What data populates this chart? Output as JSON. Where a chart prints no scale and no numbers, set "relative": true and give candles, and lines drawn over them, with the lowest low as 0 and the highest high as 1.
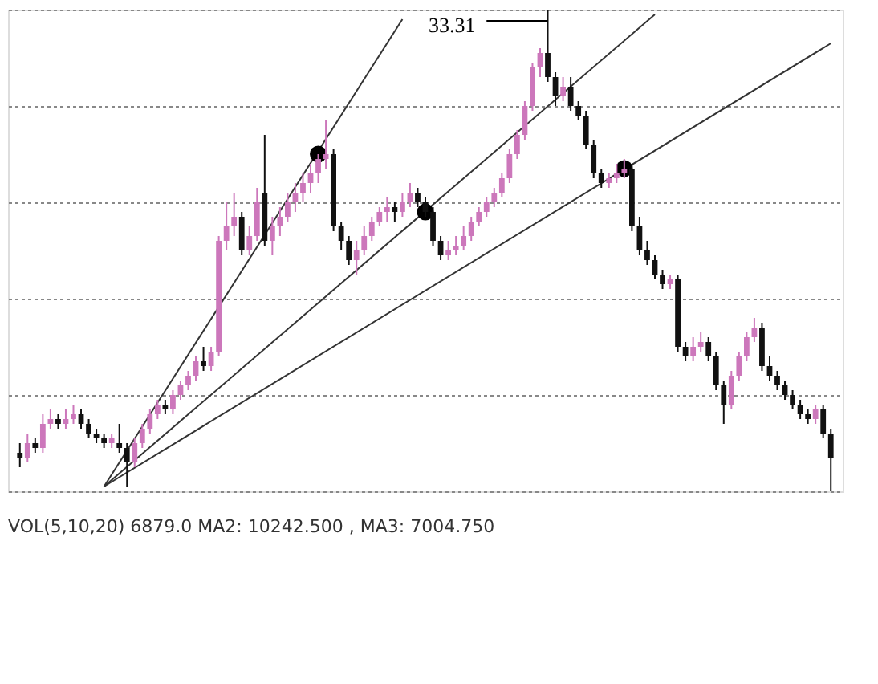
{
  "chart_data": {
    "type": "candlestick",
    "relative": true,
    "tick_labels": false,
    "grid": "y",
    "categories": [
      null,
      null,
      null,
      null,
      null,
      null,
      null,
      null,
      null,
      null,
      null,
      null,
      null,
      null,
      null,
      null,
      null,
      null,
      null,
      null,
      null,
      null,
      null,
      null,
      null,
      null,
      null,
      null,
      null,
      null,
      null,
      null,
      null,
      null,
      null,
      null,
      null,
      null,
      null,
      null,
      null,
      null,
      null,
      null,
      null,
      null,
      null,
      null,
      null,
      null,
      null,
      null,
      null,
      null,
      null,
      null,
      null,
      null,
      null,
      null,
      null,
      null,
      null,
      null,
      null,
      null,
      null,
      null,
      null,
      null,
      null,
      null,
      null,
      null,
      null,
      null,
      null,
      null,
      null,
      null,
      null,
      null,
      null,
      null,
      null,
      null,
      null,
      null,
      null,
      null,
      null,
      null,
      null,
      null,
      null,
      null,
      null,
      null,
      null,
      null,
      null,
      null,
      null,
      null,
      null,
      null,
      null
    ],
    "ohlc": [
      [
        0.08,
        0.1,
        0.05,
        0.07
      ],
      [
        0.07,
        0.12,
        0.06,
        0.1
      ],
      [
        0.1,
        0.11,
        0.08,
        0.09
      ],
      [
        0.09,
        0.16,
        0.08,
        0.14
      ],
      [
        0.14,
        0.17,
        0.13,
        0.15
      ],
      [
        0.15,
        0.16,
        0.13,
        0.14
      ],
      [
        0.14,
        0.17,
        0.13,
        0.15
      ],
      [
        0.15,
        0.18,
        0.14,
        0.16
      ],
      [
        0.16,
        0.17,
        0.13,
        0.14
      ],
      [
        0.14,
        0.15,
        0.11,
        0.12
      ],
      [
        0.12,
        0.13,
        0.1,
        0.11
      ],
      [
        0.11,
        0.12,
        0.09,
        0.1
      ],
      [
        0.1,
        0.12,
        0.09,
        0.11
      ],
      [
        0.1,
        0.14,
        0.08,
        0.09
      ],
      [
        0.09,
        0.1,
        0.01,
        0.06
      ],
      [
        0.06,
        0.11,
        0.05,
        0.1
      ],
      [
        0.1,
        0.14,
        0.09,
        0.13
      ],
      [
        0.13,
        0.17,
        0.12,
        0.16
      ],
      [
        0.16,
        0.19,
        0.15,
        0.18
      ],
      [
        0.18,
        0.19,
        0.16,
        0.17
      ],
      [
        0.17,
        0.21,
        0.16,
        0.2
      ],
      [
        0.2,
        0.23,
        0.19,
        0.22
      ],
      [
        0.22,
        0.25,
        0.21,
        0.24
      ],
      [
        0.24,
        0.28,
        0.23,
        0.27
      ],
      [
        0.27,
        0.3,
        0.25,
        0.26
      ],
      [
        0.26,
        0.3,
        0.25,
        0.29
      ],
      [
        0.29,
        0.53,
        0.28,
        0.52
      ],
      [
        0.52,
        0.6,
        0.5,
        0.55
      ],
      [
        0.55,
        0.62,
        0.53,
        0.57
      ],
      [
        0.57,
        0.58,
        0.49,
        0.5
      ],
      [
        0.5,
        0.55,
        0.49,
        0.53
      ],
      [
        0.53,
        0.63,
        0.52,
        0.6
      ],
      [
        0.62,
        0.74,
        0.51,
        0.52
      ],
      [
        0.52,
        0.57,
        0.49,
        0.55
      ],
      [
        0.55,
        0.59,
        0.53,
        0.57
      ],
      [
        0.57,
        0.62,
        0.56,
        0.6
      ],
      [
        0.6,
        0.64,
        0.58,
        0.62
      ],
      [
        0.62,
        0.66,
        0.6,
        0.64
      ],
      [
        0.64,
        0.68,
        0.62,
        0.66
      ],
      [
        0.66,
        0.7,
        0.64,
        0.69
      ],
      [
        0.69,
        0.77,
        0.67,
        0.7
      ],
      [
        0.7,
        0.71,
        0.54,
        0.55
      ],
      [
        0.55,
        0.56,
        0.5,
        0.52
      ],
      [
        0.52,
        0.53,
        0.47,
        0.48
      ],
      [
        0.48,
        0.52,
        0.45,
        0.5
      ],
      [
        0.5,
        0.55,
        0.49,
        0.53
      ],
      [
        0.53,
        0.57,
        0.52,
        0.56
      ],
      [
        0.56,
        0.59,
        0.55,
        0.58
      ],
      [
        0.58,
        0.61,
        0.56,
        0.59
      ],
      [
        0.59,
        0.6,
        0.56,
        0.58
      ],
      [
        0.58,
        0.62,
        0.57,
        0.6
      ],
      [
        0.6,
        0.64,
        0.59,
        0.62
      ],
      [
        0.62,
        0.63,
        0.59,
        0.6
      ],
      [
        0.6,
        0.61,
        0.57,
        0.58
      ],
      [
        0.58,
        0.59,
        0.51,
        0.52
      ],
      [
        0.52,
        0.53,
        0.48,
        0.49
      ],
      [
        0.49,
        0.52,
        0.48,
        0.5
      ],
      [
        0.5,
        0.53,
        0.49,
        0.51
      ],
      [
        0.51,
        0.55,
        0.5,
        0.53
      ],
      [
        0.53,
        0.57,
        0.52,
        0.56
      ],
      [
        0.56,
        0.59,
        0.55,
        0.58
      ],
      [
        0.58,
        0.61,
        0.57,
        0.6
      ],
      [
        0.6,
        0.63,
        0.59,
        0.62
      ],
      [
        0.62,
        0.66,
        0.61,
        0.65
      ],
      [
        0.65,
        0.71,
        0.64,
        0.7
      ],
      [
        0.7,
        0.75,
        0.69,
        0.74
      ],
      [
        0.74,
        0.81,
        0.73,
        0.8
      ],
      [
        0.8,
        0.89,
        0.79,
        0.88
      ],
      [
        0.88,
        0.92,
        0.86,
        0.91
      ],
      [
        0.91,
        1.0,
        0.85,
        0.86
      ],
      [
        0.86,
        0.87,
        0.8,
        0.82
      ],
      [
        0.82,
        0.86,
        0.81,
        0.84
      ],
      [
        0.84,
        0.86,
        0.79,
        0.8
      ],
      [
        0.8,
        0.81,
        0.77,
        0.78
      ],
      [
        0.78,
        0.79,
        0.71,
        0.72
      ],
      [
        0.72,
        0.73,
        0.65,
        0.66
      ],
      [
        0.66,
        0.67,
        0.63,
        0.64
      ],
      [
        0.64,
        0.66,
        0.63,
        0.65
      ],
      [
        0.65,
        0.68,
        0.64,
        0.66
      ],
      [
        0.66,
        0.69,
        0.65,
        0.67
      ],
      [
        0.67,
        0.68,
        0.54,
        0.55
      ],
      [
        0.55,
        0.57,
        0.49,
        0.5
      ],
      [
        0.5,
        0.52,
        0.47,
        0.48
      ],
      [
        0.48,
        0.49,
        0.44,
        0.45
      ],
      [
        0.45,
        0.46,
        0.42,
        0.43
      ],
      [
        0.43,
        0.45,
        0.42,
        0.44
      ],
      [
        0.44,
        0.45,
        0.29,
        0.3
      ],
      [
        0.3,
        0.31,
        0.27,
        0.28
      ],
      [
        0.28,
        0.32,
        0.27,
        0.3
      ],
      [
        0.3,
        0.33,
        0.29,
        0.31
      ],
      [
        0.31,
        0.32,
        0.27,
        0.28
      ],
      [
        0.28,
        0.29,
        0.21,
        0.22
      ],
      [
        0.22,
        0.23,
        0.14,
        0.18
      ],
      [
        0.18,
        0.25,
        0.17,
        0.24
      ],
      [
        0.24,
        0.29,
        0.23,
        0.28
      ],
      [
        0.28,
        0.33,
        0.27,
        0.32
      ],
      [
        0.32,
        0.36,
        0.31,
        0.34
      ],
      [
        0.34,
        0.35,
        0.25,
        0.26
      ],
      [
        0.26,
        0.28,
        0.23,
        0.24
      ],
      [
        0.24,
        0.25,
        0.21,
        0.22
      ],
      [
        0.22,
        0.23,
        0.19,
        0.2
      ],
      [
        0.2,
        0.21,
        0.17,
        0.18
      ],
      [
        0.18,
        0.19,
        0.15,
        0.16
      ],
      [
        0.16,
        0.17,
        0.14,
        0.15
      ],
      [
        0.15,
        0.18,
        0.14,
        0.17
      ],
      [
        0.17,
        0.18,
        0.11,
        0.12
      ],
      [
        0.12,
        0.13,
        0.0,
        0.07
      ]
    ],
    "colors": [
      "#111111",
      "#cc77bb",
      "#111111",
      "#cc77bb",
      "#cc77bb",
      "#111111",
      "#cc77bb",
      "#cc77bb",
      "#111111",
      "#111111",
      "#111111",
      "#111111",
      "#cc77bb",
      "#111111",
      "#111111",
      "#cc77bb",
      "#cc77bb",
      "#cc77bb",
      "#cc77bb",
      "#111111",
      "#cc77bb",
      "#cc77bb",
      "#cc77bb",
      "#cc77bb",
      "#111111",
      "#cc77bb",
      "#cc77bb",
      "#cc77bb",
      "#cc77bb",
      "#111111",
      "#cc77bb",
      "#cc77bb",
      "#111111",
      "#cc77bb",
      "#cc77bb",
      "#cc77bb",
      "#cc77bb",
      "#cc77bb",
      "#cc77bb",
      "#cc77bb",
      "#cc77bb",
      "#111111",
      "#111111",
      "#111111",
      "#cc77bb",
      "#cc77bb",
      "#cc77bb",
      "#cc77bb",
      "#cc77bb",
      "#111111",
      "#cc77bb",
      "#cc77bb",
      "#111111",
      "#111111",
      "#111111",
      "#111111",
      "#cc77bb",
      "#cc77bb",
      "#cc77bb",
      "#cc77bb",
      "#cc77bb",
      "#cc77bb",
      "#cc77bb",
      "#cc77bb",
      "#cc77bb",
      "#cc77bb",
      "#cc77bb",
      "#cc77bb",
      "#cc77bb",
      "#111111",
      "#111111",
      "#cc77bb",
      "#111111",
      "#111111",
      "#111111",
      "#111111",
      "#111111",
      "#cc77bb",
      "#cc77bb",
      "#cc77bb",
      "#111111",
      "#111111",
      "#111111",
      "#111111",
      "#111111",
      "#cc77bb",
      "#111111",
      "#111111",
      "#cc77bb",
      "#cc77bb",
      "#111111",
      "#111111",
      "#111111",
      "#cc77bb",
      "#cc77bb",
      "#cc77bb",
      "#cc77bb",
      "#111111",
      "#111111",
      "#111111",
      "#111111",
      "#111111",
      "#111111",
      "#111111",
      "#cc77bb",
      "#111111",
      "#111111"
    ],
    "series": [
      {
        "type": "line",
        "color": "#333333",
        "values": [
          null,
          null,
          null,
          null,
          null,
          null,
          null,
          null,
          null,
          null,
          null,
          0.01,
          null,
          null,
          null,
          null,
          null,
          null,
          null,
          null,
          null,
          null,
          null,
          null,
          null,
          null,
          null,
          null,
          null,
          null,
          null,
          null,
          null,
          null,
          null,
          null,
          null,
          null,
          null,
          null,
          null,
          null,
          null,
          null,
          null,
          null,
          null,
          null,
          null,
          null,
          0.98,
          null,
          null,
          null,
          null,
          null,
          null,
          null,
          null,
          null,
          null,
          null,
          null,
          null,
          null,
          null,
          null,
          null,
          null,
          null,
          null,
          null,
          null,
          null,
          null,
          null,
          null,
          null,
          null,
          null,
          null,
          null,
          null,
          null,
          null,
          null,
          null,
          null,
          null,
          null,
          null,
          null,
          null,
          null,
          null,
          null,
          null,
          null,
          null,
          null,
          null,
          null,
          null,
          null,
          null,
          null,
          null
        ]
      },
      {
        "type": "line",
        "color": "#333333",
        "values": [
          null,
          null,
          null,
          null,
          null,
          null,
          null,
          null,
          null,
          null,
          null,
          0.01,
          null,
          null,
          null,
          null,
          null,
          null,
          null,
          null,
          null,
          null,
          null,
          null,
          null,
          null,
          null,
          null,
          null,
          null,
          null,
          null,
          null,
          null,
          null,
          null,
          null,
          null,
          null,
          null,
          null,
          null,
          null,
          null,
          null,
          null,
          null,
          null,
          null,
          null,
          null,
          null,
          null,
          null,
          null,
          null,
          null,
          null,
          null,
          null,
          null,
          null,
          null,
          null,
          null,
          null,
          null,
          null,
          null,
          null,
          null,
          null,
          null,
          null,
          null,
          null,
          null,
          null,
          null,
          null,
          null,
          null,
          null,
          0.99,
          null,
          null,
          null,
          null,
          null,
          null,
          null,
          null,
          null,
          null,
          null,
          null,
          null,
          null,
          null,
          null,
          null,
          null,
          null,
          null,
          null,
          null,
          null
        ]
      },
      {
        "type": "line",
        "color": "#333333",
        "values": [
          null,
          null,
          null,
          null,
          null,
          null,
          null,
          null,
          null,
          null,
          null,
          0.01,
          null,
          null,
          null,
          null,
          null,
          null,
          null,
          null,
          null,
          null,
          null,
          null,
          null,
          null,
          null,
          null,
          null,
          null,
          null,
          null,
          null,
          null,
          null,
          null,
          null,
          null,
          null,
          null,
          null,
          null,
          null,
          null,
          null,
          null,
          null,
          null,
          null,
          null,
          null,
          null,
          null,
          null,
          null,
          null,
          null,
          null,
          null,
          null,
          null,
          null,
          null,
          null,
          null,
          null,
          null,
          null,
          null,
          null,
          null,
          null,
          null,
          null,
          null,
          null,
          null,
          null,
          null,
          null,
          null,
          null,
          null,
          null,
          null,
          null,
          null,
          null,
          null,
          null,
          null,
          null,
          null,
          null,
          null,
          null,
          null,
          null,
          null,
          null,
          null,
          null,
          null,
          null,
          null,
          null,
          0.93
        ]
      },
      {
        "type": "scatter",
        "marker": "circle",
        "color": "#000000",
        "values": [
          null,
          null,
          null,
          null,
          null,
          null,
          null,
          null,
          null,
          null,
          null,
          null,
          null,
          null,
          null,
          null,
          null,
          null,
          null,
          null,
          null,
          null,
          null,
          null,
          null,
          null,
          null,
          null,
          null,
          null,
          null,
          null,
          null,
          null,
          null,
          null,
          null,
          null,
          null,
          0.7,
          null,
          null,
          null,
          null,
          null,
          null,
          null,
          null,
          null,
          null,
          null,
          null,
          null,
          0.58,
          null,
          null,
          null,
          null,
          null,
          null,
          null,
          null,
          null,
          null,
          null,
          null,
          null,
          null,
          null,
          null,
          null,
          null,
          null,
          null,
          null,
          null,
          null,
          null,
          null,
          0.67,
          null,
          null,
          null,
          null,
          null,
          null,
          null,
          null,
          null,
          null,
          null,
          null,
          null,
          null,
          null,
          null,
          null,
          null,
          null,
          null,
          null,
          null,
          null,
          null,
          null,
          null,
          null
        ]
      }
    ],
    "annotations": [
      "33.31",
      "VOL(5,10,20)  6879.0",
      "MA2: 10242.500 ,",
      "MA3: 7004.750"
    ]
  }
}
